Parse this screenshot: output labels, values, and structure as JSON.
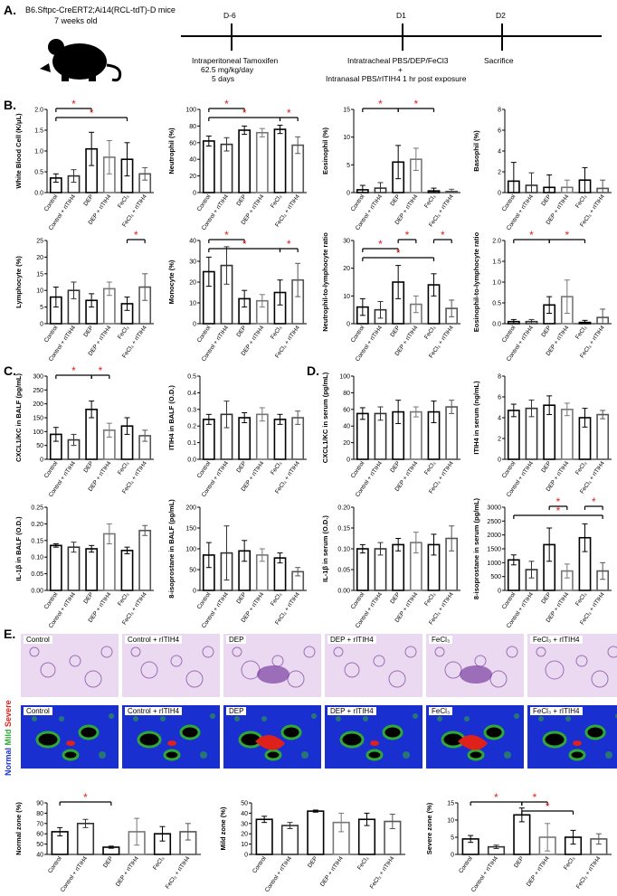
{
  "panel_labels": {
    "a": "A.",
    "b": "B.",
    "c": "C.",
    "d": "D.",
    "e": "E."
  },
  "timeline": {
    "mouse_line1": "B6.Sftpc-CreERT2;Ai14(RCL-tdT)-D mice",
    "mouse_line2": "7 weeks old",
    "ticks": [
      "D-6",
      "D1",
      "D2"
    ],
    "ev1_l1": "Intraperitoneal Tamoxifen",
    "ev1_l2": "62.5 mg/kg/day",
    "ev1_l3": "5 days",
    "ev2_l1": "Intratracheal PBS/DEP/FeCl3",
    "ev2_l2": "+",
    "ev2_l3": "Intranasal PBS/rITIH4 1 hr post exposure",
    "ev3_l1": "Sacrifice"
  },
  "groups6": [
    "Control",
    "Control + rITIH4",
    "DEP",
    "DEP + rITIH4",
    "FeCl3",
    "FeCl3 + rITIH4"
  ],
  "colors": {
    "c1": "#000000",
    "c2": "#333333",
    "c3": "#000000",
    "c4": "#777777",
    "c5": "#000000",
    "c6": "#555555",
    "star": "#e0201b"
  },
  "chart_data": [
    {
      "type": "bar",
      "id": "wbc",
      "ylabel": "White Blood Cell (K/μL)",
      "ylim": [
        0,
        2.0
      ],
      "yticks": [
        "0.0",
        "0.5",
        "1.0",
        "1.5",
        "2.0"
      ],
      "values": [
        0.35,
        0.4,
        1.05,
        0.85,
        0.8,
        0.45
      ],
      "errors": [
        0.1,
        0.15,
        0.4,
        0.4,
        0.4,
        0.15
      ],
      "sig": [
        [
          0,
          2,
          0
        ],
        [
          0,
          4,
          1
        ]
      ]
    },
    {
      "type": "bar",
      "id": "neutrophil",
      "ylabel": "Neutrophil (%)",
      "ylim": [
        0,
        100
      ],
      "yticks": [
        "0",
        "20",
        "40",
        "60",
        "80",
        "100"
      ],
      "values": [
        62,
        58,
        75,
        72,
        76,
        57
      ],
      "errors": [
        6,
        8,
        5,
        5,
        5,
        10
      ],
      "sig": [
        [
          0,
          2,
          0
        ],
        [
          0,
          4,
          1
        ],
        [
          4,
          5,
          1
        ]
      ]
    },
    {
      "type": "bar",
      "id": "eosinophil",
      "ylabel": "Eosinophil (%)",
      "ylim": [
        0,
        15
      ],
      "yticks": [
        "0",
        "5",
        "10",
        "15"
      ],
      "values": [
        0.5,
        0.8,
        5.5,
        6,
        0.3,
        0.2
      ],
      "errors": [
        0.8,
        1,
        3,
        2,
        0.5,
        0.4
      ],
      "sig": [
        [
          0,
          2,
          0
        ],
        [
          2,
          4,
          0
        ]
      ]
    },
    {
      "type": "bar",
      "id": "basophil",
      "ylabel": "Basophil (%)",
      "ylim": [
        0,
        8
      ],
      "yticks": [
        "0",
        "2",
        "4",
        "6",
        "8"
      ],
      "values": [
        1.1,
        0.7,
        0.5,
        0.5,
        1.2,
        0.4
      ],
      "errors": [
        1.8,
        1.2,
        1.2,
        0.7,
        1.2,
        0.8
      ],
      "sig": []
    },
    {
      "type": "bar",
      "id": "lymphocyte",
      "ylabel": "Lymphocyte (%)",
      "ylim": [
        0,
        25
      ],
      "yticks": [
        "0",
        "5",
        "10",
        "15",
        "20",
        "25"
      ],
      "values": [
        8,
        10,
        7,
        10.5,
        6,
        11
      ],
      "errors": [
        3,
        2.5,
        2,
        2,
        2,
        4
      ],
      "sig": [
        [
          4,
          5,
          0
        ]
      ]
    },
    {
      "type": "bar",
      "id": "monocyte",
      "ylabel": "Monocyte (%)",
      "ylim": [
        0,
        40
      ],
      "yticks": [
        "0",
        "10",
        "20",
        "30",
        "40"
      ],
      "values": [
        25,
        28,
        12,
        11,
        15,
        21
      ],
      "errors": [
        7,
        9,
        4,
        3,
        6,
        8
      ],
      "sig": [
        [
          0,
          2,
          0
        ],
        [
          0,
          4,
          1
        ],
        [
          4,
          5,
          1
        ]
      ]
    },
    {
      "type": "bar",
      "id": "nlr",
      "ylabel": "Neutrophil-to-lymphocyte ratio",
      "ylim": [
        0,
        30
      ],
      "yticks": [
        "0",
        "10",
        "20",
        "30"
      ],
      "values": [
        6,
        5,
        15,
        7,
        14,
        5.5
      ],
      "errors": [
        3,
        3,
        6,
        3,
        4,
        3
      ],
      "sig": [
        [
          0,
          2,
          1
        ],
        [
          2,
          3,
          0
        ],
        [
          0,
          4,
          2
        ],
        [
          4,
          5,
          0
        ]
      ]
    },
    {
      "type": "bar",
      "id": "elr",
      "ylabel": "Eosinophil-to-lymphocyte ratio",
      "ylim": [
        0,
        2.0
      ],
      "yticks": [
        "0.0",
        "0.5",
        "1.0",
        "1.5",
        "2.0"
      ],
      "values": [
        0.05,
        0.05,
        0.45,
        0.65,
        0.03,
        0.15
      ],
      "errors": [
        0.05,
        0.05,
        0.2,
        0.4,
        0.05,
        0.2
      ],
      "sig": [
        [
          0,
          2,
          0
        ],
        [
          2,
          4,
          0
        ]
      ]
    },
    {
      "type": "bar",
      "id": "cxcl1_balf",
      "ylabel": "CXCL1/KC in BALF (pg/mL)",
      "ylim": [
        0,
        300
      ],
      "yticks": [
        "0",
        "50",
        "100",
        "150",
        "200",
        "250",
        "300"
      ],
      "values": [
        90,
        70,
        180,
        105,
        120,
        85
      ],
      "errors": [
        25,
        20,
        30,
        25,
        30,
        20
      ],
      "sig": [
        [
          0,
          2,
          0
        ],
        [
          2,
          3,
          0
        ]
      ]
    },
    {
      "type": "bar",
      "id": "itih4_balf",
      "ylabel": "ITIH4 in BALF (O.D.)",
      "ylim": [
        0,
        0.5
      ],
      "yticks": [
        "0.0",
        "0.1",
        "0.2",
        "0.3",
        "0.4",
        "0.5"
      ],
      "values": [
        0.24,
        0.27,
        0.25,
        0.27,
        0.24,
        0.25
      ],
      "errors": [
        0.03,
        0.08,
        0.03,
        0.04,
        0.03,
        0.04
      ],
      "sig": []
    },
    {
      "type": "bar",
      "id": "cxcl1_serum",
      "ylabel": "CXCL1/KC in serum (pg/mL)",
      "ylim": [
        0,
        100
      ],
      "yticks": [
        "0",
        "20",
        "40",
        "60",
        "80",
        "100"
      ],
      "values": [
        55,
        55,
        57,
        57,
        57,
        63
      ],
      "errors": [
        7,
        8,
        14,
        6,
        13,
        8
      ],
      "sig": []
    },
    {
      "type": "bar",
      "id": "itih4_serum",
      "ylabel": "ITIH4 in serum (ng/mL)",
      "ylim": [
        0,
        8
      ],
      "yticks": [
        "0",
        "2",
        "4",
        "6",
        "8"
      ],
      "values": [
        4.7,
        4.9,
        5.2,
        4.8,
        4.0,
        4.3
      ],
      "errors": [
        0.6,
        0.8,
        0.9,
        0.6,
        0.9,
        0.4
      ],
      "sig": []
    },
    {
      "type": "bar",
      "id": "il1b_balf",
      "ylabel": "IL-1β in BALF (O.D.)",
      "ylim": [
        0,
        0.25
      ],
      "yticks": [
        "0.00",
        "0.05",
        "0.10",
        "0.15",
        "0.20",
        "0.25"
      ],
      "values": [
        0.135,
        0.13,
        0.125,
        0.17,
        0.12,
        0.18
      ],
      "errors": [
        0.005,
        0.015,
        0.01,
        0.03,
        0.01,
        0.015
      ],
      "sig": []
    },
    {
      "type": "bar",
      "id": "isoprostane_balf",
      "ylabel": "8-isoprostane in BALF (pg/mL)",
      "ylim": [
        0,
        200
      ],
      "yticks": [
        "0",
        "50",
        "100",
        "150",
        "200"
      ],
      "values": [
        85,
        90,
        95,
        85,
        78,
        45
      ],
      "errors": [
        30,
        65,
        25,
        15,
        12,
        10
      ],
      "sig": []
    },
    {
      "type": "bar",
      "id": "il1b_serum",
      "ylabel": "IL-1β in serum (O.D.)",
      "ylim": [
        0,
        0.2
      ],
      "yticks": [
        "0.00",
        "0.05",
        "0.10",
        "0.15",
        "0.20"
      ],
      "values": [
        0.1,
        0.1,
        0.11,
        0.115,
        0.11,
        0.125
      ],
      "errors": [
        0.01,
        0.015,
        0.015,
        0.025,
        0.025,
        0.03
      ],
      "sig": []
    },
    {
      "type": "bar",
      "id": "isoprostane_serum",
      "ylabel": "8-isoprostane in serum (pg/mL)",
      "ylim": [
        0,
        3000
      ],
      "yticks": [
        "0",
        "500",
        "1000",
        "1500",
        "2000",
        "2500",
        "3000"
      ],
      "values": [
        1100,
        750,
        1650,
        700,
        1900,
        700
      ],
      "errors": [
        180,
        300,
        600,
        250,
        500,
        300
      ],
      "sig": [
        [
          2,
          3,
          0
        ],
        [
          4,
          5,
          0
        ],
        [
          0,
          5,
          1
        ]
      ]
    },
    {
      "type": "bar",
      "id": "normal_zone",
      "ylabel": "Normal zone (%)",
      "ylim": [
        40,
        90
      ],
      "yticks": [
        "40",
        "50",
        "60",
        "70",
        "80",
        "90"
      ],
      "values": [
        62,
        70,
        47,
        62,
        60,
        62
      ],
      "errors": [
        4,
        4,
        1,
        13,
        7,
        8
      ],
      "sig": [
        [
          0,
          2,
          0
        ]
      ]
    },
    {
      "type": "bar",
      "id": "mild_zone",
      "ylabel": "Mild zone (%)",
      "ylim": [
        0,
        50
      ],
      "yticks": [
        "0",
        "10",
        "20",
        "30",
        "40",
        "50"
      ],
      "values": [
        34,
        28,
        42,
        31,
        34,
        32
      ],
      "errors": [
        3,
        3,
        1,
        9,
        6,
        7
      ],
      "sig": []
    },
    {
      "type": "bar",
      "id": "severe_zone",
      "ylabel": "Severe zone (%)",
      "ylim": [
        0,
        15
      ],
      "yticks": [
        "0",
        "5",
        "10",
        "15"
      ],
      "values": [
        4.5,
        2.2,
        11.5,
        5,
        5,
        4.5
      ],
      "errors": [
        1,
        0.5,
        2,
        4,
        2,
        1.5
      ],
      "sig": [
        [
          0,
          2,
          0
        ],
        [
          2,
          3,
          0
        ],
        [
          2,
          4,
          1
        ]
      ]
    }
  ],
  "panelE": {
    "histo_titles": [
      "Control",
      "Control + rITIH4",
      "DEP",
      "DEP + rITIH4",
      "FeCl3",
      "FeCl3 + rITIH4"
    ],
    "heat_titles": [
      "Control",
      "Control + rITIH4",
      "DEP",
      "DEP + rITIH4",
      "FeCl3",
      "FeCl3 + rITIH4"
    ],
    "legend_normal": "Normal",
    "legend_mild": "Mild",
    "legend_severe": "Severe"
  }
}
